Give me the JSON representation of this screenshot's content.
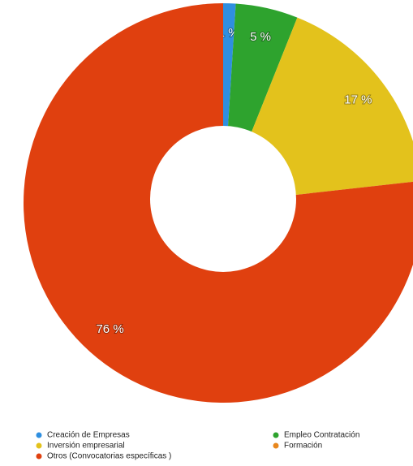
{
  "chart_data": {
    "type": "donut",
    "categories": [
      "Creación de Empresas",
      "Empleo Contratación",
      "Inversión empresarial",
      "Formación",
      "Otros (Convocatorias específicas )"
    ],
    "values": [
      1,
      5,
      17,
      0,
      76
    ],
    "value_labels": [
      "1 %",
      "5 %",
      "17 %",
      null,
      "76 %"
    ],
    "colors": [
      "#2f8fe0",
      "#2ea32e",
      "#e3c21c",
      "#e8871e",
      "#e0400f"
    ],
    "legend": "bottom"
  }
}
